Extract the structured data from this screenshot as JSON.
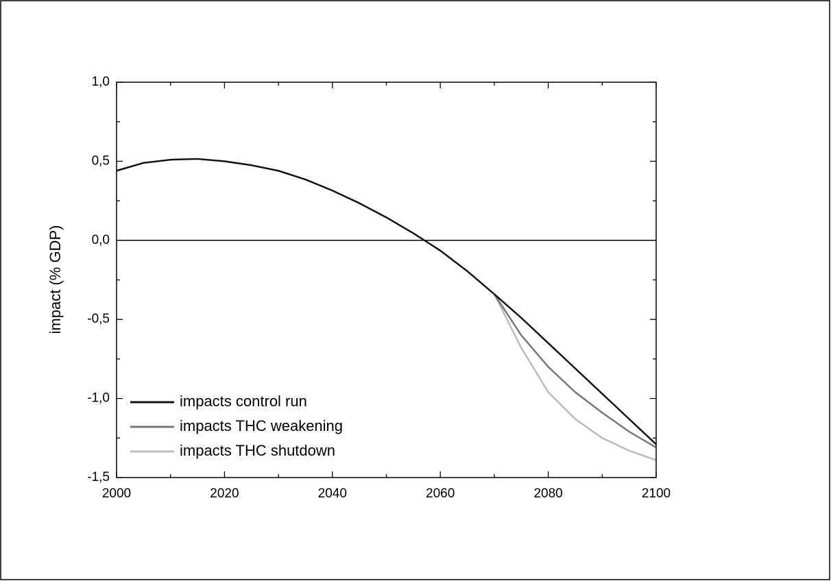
{
  "chart_data": {
    "type": "line",
    "y_label": "impact (% GDP)",
    "x": [
      2000,
      2005,
      2010,
      2015,
      2020,
      2025,
      2030,
      2035,
      2040,
      2045,
      2050,
      2055,
      2060,
      2065,
      2070,
      2075,
      2080,
      2085,
      2090,
      2095,
      2100
    ],
    "series": [
      {
        "name": "impacts control run",
        "color": "#111111",
        "values": [
          0.44,
          0.49,
          0.51,
          0.515,
          0.5,
          0.475,
          0.44,
          0.385,
          0.315,
          0.235,
          0.145,
          0.045,
          -0.065,
          -0.195,
          -0.34,
          -0.49,
          -0.65,
          -0.81,
          -0.97,
          -1.13,
          -1.29
        ]
      },
      {
        "name": "impacts THC weakening",
        "color": "#777777",
        "values": [
          null,
          null,
          null,
          null,
          null,
          null,
          null,
          null,
          null,
          null,
          null,
          null,
          null,
          null,
          -0.34,
          -0.6,
          -0.8,
          -0.96,
          -1.09,
          -1.21,
          -1.31
        ]
      },
      {
        "name": "impacts THC shutdown",
        "color": "#bbbbbb",
        "values": [
          null,
          null,
          null,
          null,
          null,
          null,
          null,
          null,
          null,
          null,
          null,
          null,
          null,
          null,
          -0.34,
          -0.68,
          -0.96,
          -1.13,
          -1.25,
          -1.33,
          -1.39
        ]
      }
    ],
    "xlim": [
      2000,
      2100
    ],
    "xticks": [
      2000,
      2020,
      2040,
      2060,
      2080,
      2100
    ],
    "ylim": [
      -1.5,
      1.0
    ],
    "yticks": [
      {
        "value": -1.5,
        "label": "-1,5"
      },
      {
        "value": -1.0,
        "label": "-1,0"
      },
      {
        "value": -0.5,
        "label": "-0,5"
      },
      {
        "value": 0,
        "label": "0,0"
      },
      {
        "value": 0.5,
        "label": "0,5"
      },
      {
        "value": 1.0,
        "label": "1,0"
      }
    ],
    "legend": "lower left"
  }
}
